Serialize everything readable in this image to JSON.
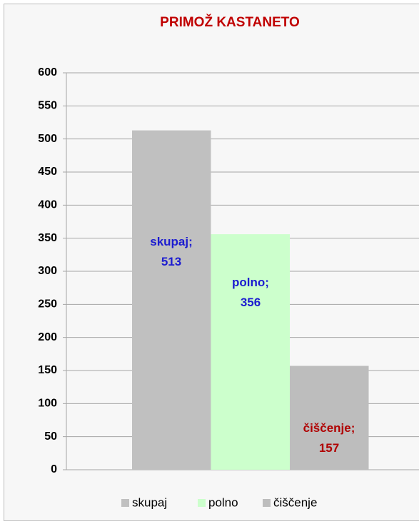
{
  "chart_data": {
    "type": "bar",
    "title": "PRIMOŽ KASTANETO",
    "categories": [
      null
    ],
    "series": [
      {
        "name": "skupaj",
        "color": "#c0c0c0",
        "values": [
          513
        ],
        "value_labels": [
          "skupaj; 513"
        ],
        "label_color": "#1c1cd0"
      },
      {
        "name": "polno",
        "color": "#ccffcc",
        "values": [
          356
        ],
        "value_labels": [
          "polno; 356"
        ],
        "label_color": "#1c1cd0"
      },
      {
        "name": "čiščenje",
        "color": "#bdbdbd",
        "values": [
          157
        ],
        "value_labels": [
          "čiščenje; 157"
        ],
        "label_color": "#b00000"
      }
    ],
    "ylim": [
      0,
      600
    ],
    "yticks": [
      0,
      50,
      100,
      150,
      200,
      250,
      300,
      350,
      400,
      450,
      500,
      550,
      600
    ],
    "grid": true,
    "legend": "bottom",
    "title_color": "#c00000"
  }
}
